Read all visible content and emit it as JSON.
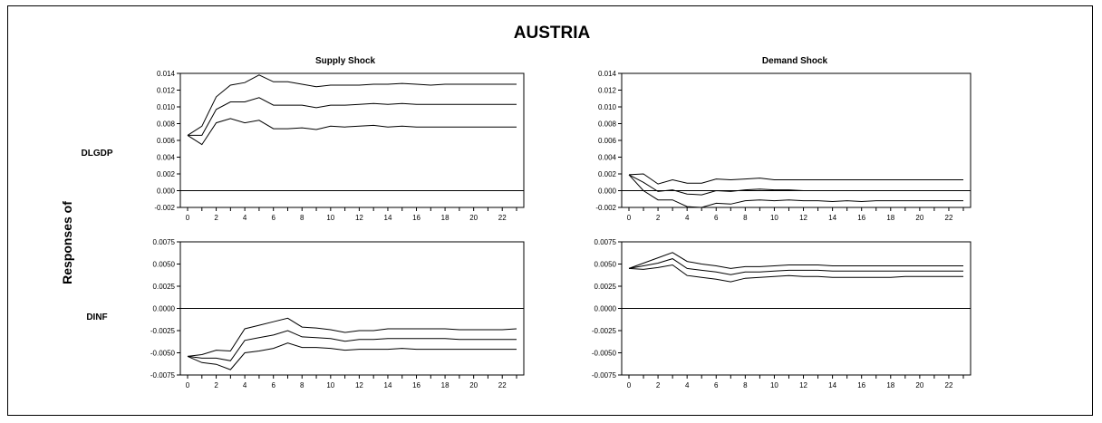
{
  "figure": {
    "title": "AUSTRIA",
    "ylabel": "Responses of",
    "col_titles": [
      "Supply Shock",
      "Demand Shock"
    ],
    "row_labels": [
      "DLGDP",
      "DINF"
    ]
  },
  "chart_data": [
    {
      "type": "line",
      "title": "Supply Shock",
      "row_label": "DLGDP",
      "x": [
        0,
        1,
        2,
        3,
        4,
        5,
        6,
        7,
        8,
        9,
        10,
        11,
        12,
        13,
        14,
        15,
        16,
        17,
        18,
        19,
        20,
        21,
        22,
        23
      ],
      "x_ticks": [
        0,
        2,
        4,
        6,
        8,
        10,
        12,
        14,
        16,
        18,
        20,
        22
      ],
      "ylim": [
        -0.002,
        0.014
      ],
      "y_ticks": [
        "-0.002",
        "0.000",
        "0.002",
        "0.004",
        "0.006",
        "0.008",
        "0.010",
        "0.012",
        "0.014"
      ],
      "zero_line": true,
      "series": [
        {
          "values": [
            0.0066,
            0.0077,
            0.0112,
            0.0126,
            0.0129,
            0.0138,
            0.013,
            0.013,
            0.0127,
            0.0124,
            0.0126,
            0.0126,
            0.0126,
            0.0127,
            0.0127,
            0.0128,
            0.0127,
            0.0126,
            0.0127,
            0.0127,
            0.0127,
            0.0127,
            0.0127,
            0.0127
          ]
        },
        {
          "values": [
            0.0066,
            0.0066,
            0.0097,
            0.0106,
            0.0106,
            0.0111,
            0.0102,
            0.0102,
            0.0102,
            0.0099,
            0.0102,
            0.0102,
            0.0103,
            0.0104,
            0.0103,
            0.0104,
            0.0103,
            0.0103,
            0.0103,
            0.0103,
            0.0103,
            0.0103,
            0.0103,
            0.0103
          ]
        },
        {
          "values": [
            0.0066,
            0.0055,
            0.0081,
            0.0086,
            0.0081,
            0.0084,
            0.0074,
            0.0074,
            0.0075,
            0.0073,
            0.0077,
            0.0076,
            0.0077,
            0.0078,
            0.0076,
            0.0077,
            0.0076,
            0.0076,
            0.0076,
            0.0076,
            0.0076,
            0.0076,
            0.0076,
            0.0076
          ]
        }
      ]
    },
    {
      "type": "line",
      "title": "Demand Shock",
      "row_label": "DLGDP",
      "x": [
        0,
        1,
        2,
        3,
        4,
        5,
        6,
        7,
        8,
        9,
        10,
        11,
        12,
        13,
        14,
        15,
        16,
        17,
        18,
        19,
        20,
        21,
        22,
        23
      ],
      "x_ticks": [
        0,
        2,
        4,
        6,
        8,
        10,
        12,
        14,
        16,
        18,
        20,
        22
      ],
      "ylim": [
        -0.002,
        0.014
      ],
      "y_ticks": [
        "-0.002",
        "0.000",
        "0.002",
        "0.004",
        "0.006",
        "0.008",
        "0.010",
        "0.012",
        "0.014"
      ],
      "zero_line": true,
      "series": [
        {
          "values": [
            0.0019,
            0.002,
            0.0008,
            0.0013,
            0.0009,
            0.0009,
            0.0014,
            0.0013,
            0.0014,
            0.0015,
            0.0013,
            0.0013,
            0.0013,
            0.0013,
            0.0013,
            0.0013,
            0.0013,
            0.0013,
            0.0013,
            0.0013,
            0.0013,
            0.0013,
            0.0013,
            0.0013
          ]
        },
        {
          "values": [
            0.0019,
            0.001,
            -0.0001,
            0.0001,
            -0.0004,
            -0.0005,
            0.0,
            -0.0001,
            0.0001,
            0.0002,
            0.0001,
            0.0001,
            0.0,
            0.0,
            0.0,
            0.0,
            0.0,
            0.0,
            0.0,
            0.0,
            0.0,
            0.0,
            0.0,
            0.0
          ]
        },
        {
          "values": [
            0.0019,
            0.0,
            -0.0011,
            -0.0011,
            -0.0019,
            -0.002,
            -0.0015,
            -0.0016,
            -0.0012,
            -0.0011,
            -0.0012,
            -0.0011,
            -0.0012,
            -0.0012,
            -0.0013,
            -0.0012,
            -0.0013,
            -0.0012,
            -0.0012,
            -0.0012,
            -0.0012,
            -0.0012,
            -0.0012,
            -0.0012
          ]
        }
      ]
    },
    {
      "type": "line",
      "title": "Supply Shock",
      "row_label": "DINF",
      "x": [
        0,
        1,
        2,
        3,
        4,
        5,
        6,
        7,
        8,
        9,
        10,
        11,
        12,
        13,
        14,
        15,
        16,
        17,
        18,
        19,
        20,
        21,
        22,
        23
      ],
      "x_ticks": [
        0,
        2,
        4,
        6,
        8,
        10,
        12,
        14,
        16,
        18,
        20,
        22
      ],
      "ylim": [
        -0.0075,
        0.0075
      ],
      "y_ticks": [
        "-0.0075",
        "-0.0050",
        "-0.0025",
        "0.0000",
        "0.0025",
        "0.0050",
        "0.0075"
      ],
      "zero_line": true,
      "series": [
        {
          "values": [
            -0.0054,
            -0.0052,
            -0.0047,
            -0.0048,
            -0.0023,
            -0.0019,
            -0.0015,
            -0.0011,
            -0.0021,
            -0.0022,
            -0.0024,
            -0.0027,
            -0.0025,
            -0.0025,
            -0.0023,
            -0.0023,
            -0.0023,
            -0.0023,
            -0.0023,
            -0.0024,
            -0.0024,
            -0.0024,
            -0.0024,
            -0.0023
          ]
        },
        {
          "values": [
            -0.0054,
            -0.0056,
            -0.0056,
            -0.0059,
            -0.0036,
            -0.0033,
            -0.003,
            -0.0025,
            -0.0032,
            -0.0033,
            -0.0034,
            -0.0037,
            -0.0035,
            -0.0035,
            -0.0034,
            -0.0034,
            -0.0034,
            -0.0034,
            -0.0034,
            -0.0035,
            -0.0035,
            -0.0035,
            -0.0035,
            -0.0035
          ]
        },
        {
          "values": [
            -0.0054,
            -0.0061,
            -0.0063,
            -0.0069,
            -0.005,
            -0.0048,
            -0.0045,
            -0.0039,
            -0.0044,
            -0.0044,
            -0.0045,
            -0.0047,
            -0.0046,
            -0.0046,
            -0.0046,
            -0.0045,
            -0.0046,
            -0.0046,
            -0.0046,
            -0.0046,
            -0.0046,
            -0.0046,
            -0.0046,
            -0.0046
          ]
        }
      ]
    },
    {
      "type": "line",
      "title": "Demand Shock",
      "row_label": "DINF",
      "x": [
        0,
        1,
        2,
        3,
        4,
        5,
        6,
        7,
        8,
        9,
        10,
        11,
        12,
        13,
        14,
        15,
        16,
        17,
        18,
        19,
        20,
        21,
        22,
        23
      ],
      "x_ticks": [
        0,
        2,
        4,
        6,
        8,
        10,
        12,
        14,
        16,
        18,
        20,
        22
      ],
      "ylim": [
        -0.0075,
        0.0075
      ],
      "y_ticks": [
        "-0.0075",
        "-0.0050",
        "-0.0025",
        "0.0000",
        "0.0025",
        "0.0050",
        "0.0075"
      ],
      "zero_line": true,
      "series": [
        {
          "values": [
            0.0045,
            0.0051,
            0.0057,
            0.0063,
            0.0053,
            0.005,
            0.0048,
            0.0045,
            0.0047,
            0.0047,
            0.0048,
            0.0049,
            0.0049,
            0.0049,
            0.0048,
            0.0048,
            0.0048,
            0.0048,
            0.0048,
            0.0048,
            0.0048,
            0.0048,
            0.0048,
            0.0048
          ]
        },
        {
          "values": [
            0.0045,
            0.0048,
            0.0051,
            0.0056,
            0.0045,
            0.0043,
            0.0041,
            0.0038,
            0.0041,
            0.0041,
            0.0042,
            0.0043,
            0.0043,
            0.0043,
            0.0042,
            0.0042,
            0.0042,
            0.0042,
            0.0042,
            0.0042,
            0.0042,
            0.0042,
            0.0042,
            0.0042
          ]
        },
        {
          "values": [
            0.0045,
            0.0044,
            0.0046,
            0.0049,
            0.0037,
            0.0035,
            0.0033,
            0.003,
            0.0034,
            0.0035,
            0.0036,
            0.0037,
            0.0036,
            0.0036,
            0.0035,
            0.0035,
            0.0035,
            0.0035,
            0.0035,
            0.0036,
            0.0036,
            0.0036,
            0.0036,
            0.0036
          ]
        }
      ]
    }
  ]
}
